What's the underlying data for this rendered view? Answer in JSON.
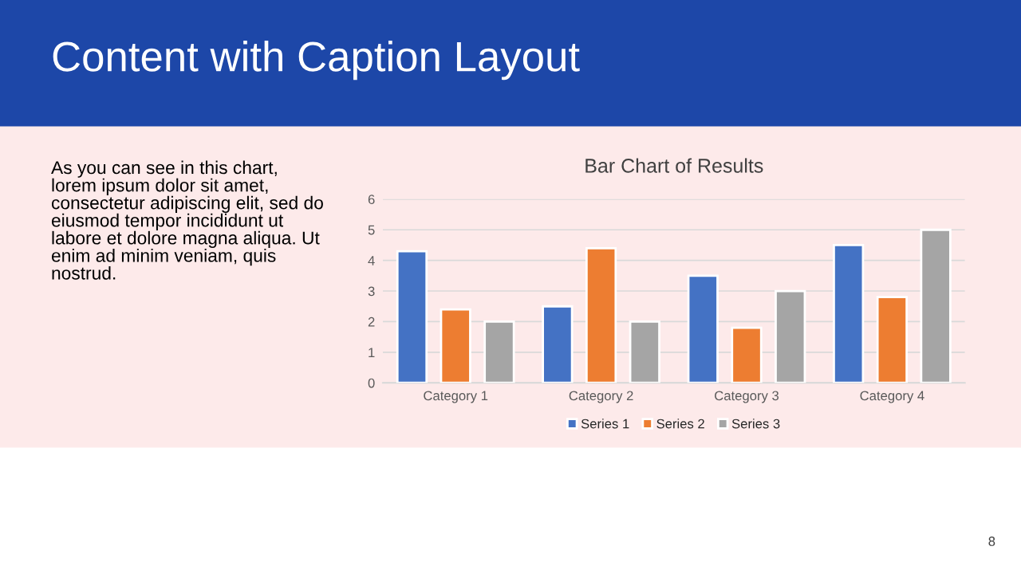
{
  "chart_data": {
    "type": "bar",
    "title": "Bar Chart of Results",
    "categories": [
      "Category 1",
      "Category 2",
      "Category 3",
      "Category 4"
    ],
    "series": [
      {
        "name": "Series 1",
        "color": "#4472c4",
        "values": [
          4.3,
          2.5,
          3.5,
          4.5
        ]
      },
      {
        "name": "Series 2",
        "color": "#ed7d31",
        "values": [
          2.4,
          4.4,
          1.8,
          2.8
        ]
      },
      {
        "name": "Series 3",
        "color": "#a5a5a5",
        "values": [
          2,
          2,
          3,
          5
        ]
      }
    ],
    "ylim": [
      0,
      6
    ],
    "yticks": [
      0,
      1,
      2,
      3,
      4,
      5,
      6
    ],
    "grid": "y",
    "legend": "bottom",
    "annotations": [
      "Content with Caption Layout",
      "As you can see in this chart,\nlorem ipsum dolor sit amet,\nconsectetur adipiscing elit, sed do\neiusmod tempor incididunt ut\nlabore et dolore magna aliqua. Ut\nenim ad minim veniam, quis\nnostrud.",
      "8"
    ]
  }
}
